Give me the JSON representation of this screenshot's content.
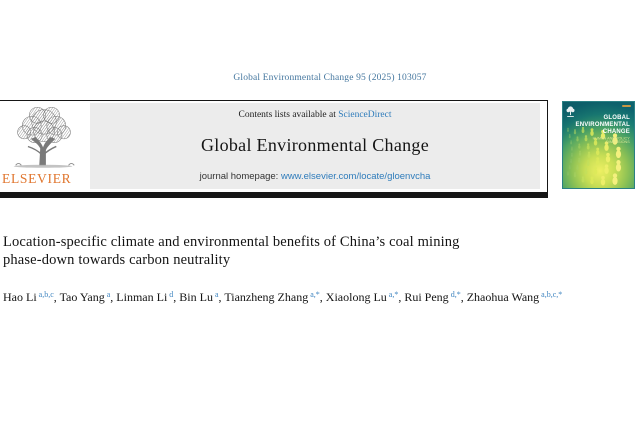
{
  "page": {
    "citation": "Global Environmental Change 95 (2025) 103057"
  },
  "header": {
    "contents_line_prefix": "Contents lists available at ",
    "sciencedirect": "ScienceDirect",
    "journal_title": "Global Environmental Change",
    "homepage_prefix": "journal homepage: ",
    "homepage_url": "www.elsevier.com/locate/gloenvcha",
    "elsevier_logo_text": "ELSEVIER"
  },
  "cover": {
    "title_lines": [
      "GLOBAL",
      "ENVIRONMENTAL",
      "CHANGE"
    ],
    "subtitle_lines": [
      "HUMAN AND POLICY",
      "DIMENSIONS"
    ]
  },
  "article": {
    "title": "Location-specific climate and environmental benefits of China’s coal mining phase-down towards carbon neutrality",
    "authors": [
      {
        "name": "Hao Li",
        "sup": "a,b,c"
      },
      {
        "name": "Tao Yang",
        "sup": "a"
      },
      {
        "name": "Linman Li",
        "sup": "d"
      },
      {
        "name": "Bin Lu",
        "sup": "a"
      },
      {
        "name": "Tianzheng Zhang",
        "sup": "a,*"
      },
      {
        "name": "Xiaolong Lu",
        "sup": "a,*"
      },
      {
        "name": "Rui Peng",
        "sup": "d,*"
      },
      {
        "name": "Zhaohua Wang",
        "sup": "a,b,c,*"
      }
    ]
  },
  "colors": {
    "link_blue": "#2f7cbb",
    "citation_blue": "#45779f",
    "superscript_blue": "#3f85c0",
    "elsevier_orange": "#e0752d",
    "header_gray": "#ececec",
    "rule_black": "#161616",
    "cover_teal": "#0e6570",
    "cover_yellow": "#eef063"
  }
}
